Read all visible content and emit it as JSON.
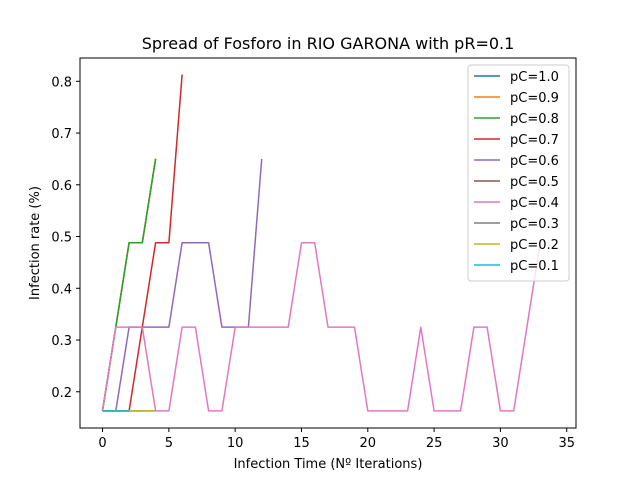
{
  "chart_data": {
    "type": "line",
    "title": "Spread of Fosforo in RIO GARONA with pR=0.1",
    "xlabel": "Infection Time (Nº Iterations)",
    "ylabel": "Infection rate (%)",
    "xlim": [
      -1.7,
      35.7
    ],
    "ylim": [
      0.13,
      0.845
    ],
    "xticks": [
      0,
      5,
      10,
      15,
      20,
      25,
      30,
      35
    ],
    "yticks": [
      0.2,
      0.3,
      0.4,
      0.5,
      0.6,
      0.7,
      0.8
    ],
    "legend_position": "top-right",
    "grid": false,
    "series": [
      {
        "name": "pC=1.0",
        "color": "#1f77b4",
        "x": [
          0,
          1,
          2,
          3,
          4
        ],
        "y": [
          0.163,
          0.325,
          0.488,
          0.488,
          0.65
        ]
      },
      {
        "name": "pC=0.9",
        "color": "#ff7f0e",
        "x": [
          0,
          1,
          2,
          3,
          4
        ],
        "y": [
          0.163,
          0.325,
          0.488,
          0.488,
          0.65
        ]
      },
      {
        "name": "pC=0.8",
        "color": "#2ca02c",
        "x": [
          0,
          1,
          2,
          3,
          4
        ],
        "y": [
          0.163,
          0.325,
          0.488,
          0.488,
          0.65
        ]
      },
      {
        "name": "pC=0.7",
        "color": "#d62728",
        "x": [
          0,
          1,
          2,
          3,
          4,
          5,
          6
        ],
        "y": [
          0.163,
          0.163,
          0.163,
          0.325,
          0.488,
          0.488,
          0.813
        ]
      },
      {
        "name": "pC=0.6",
        "color": "#9467bd",
        "x": [
          0,
          1,
          2,
          3,
          4,
          5,
          6,
          7,
          8,
          9,
          10,
          11,
          12
        ],
        "y": [
          0.163,
          0.163,
          0.325,
          0.325,
          0.325,
          0.325,
          0.488,
          0.488,
          0.488,
          0.325,
          0.325,
          0.325,
          0.65
        ]
      },
      {
        "name": "pC=0.5",
        "color": "#8c564b",
        "x": [
          0,
          1,
          2,
          3,
          4
        ],
        "y": [
          0.163,
          0.163,
          0.163,
          0.163,
          0.163
        ]
      },
      {
        "name": "pC=0.4",
        "color": "#e377c2",
        "x": [
          0,
          1,
          2,
          3,
          4,
          5,
          6,
          7,
          8,
          9,
          10,
          11,
          12,
          13,
          14,
          15,
          16,
          17,
          18,
          19,
          20,
          21,
          22,
          23,
          24,
          25,
          26,
          27,
          28,
          29,
          30,
          31,
          32,
          33
        ],
        "y": [
          0.163,
          0.325,
          0.325,
          0.325,
          0.163,
          0.163,
          0.325,
          0.325,
          0.163,
          0.163,
          0.325,
          0.325,
          0.325,
          0.325,
          0.325,
          0.488,
          0.488,
          0.325,
          0.325,
          0.325,
          0.163,
          0.163,
          0.163,
          0.163,
          0.325,
          0.163,
          0.163,
          0.163,
          0.325,
          0.325,
          0.163,
          0.163,
          0.325,
          0.488
        ]
      },
      {
        "name": "pC=0.3",
        "color": "#7f7f7f",
        "x": [
          0,
          1,
          2,
          3
        ],
        "y": [
          0.163,
          0.163,
          0.163,
          0.163
        ]
      },
      {
        "name": "pC=0.2",
        "color": "#bcbd22",
        "x": [
          0,
          1,
          2,
          3,
          4
        ],
        "y": [
          0.163,
          0.163,
          0.163,
          0.163,
          0.163
        ]
      },
      {
        "name": "pC=0.1",
        "color": "#17becf",
        "x": [
          0,
          1,
          2
        ],
        "y": [
          0.163,
          0.163,
          0.163
        ]
      }
    ]
  }
}
